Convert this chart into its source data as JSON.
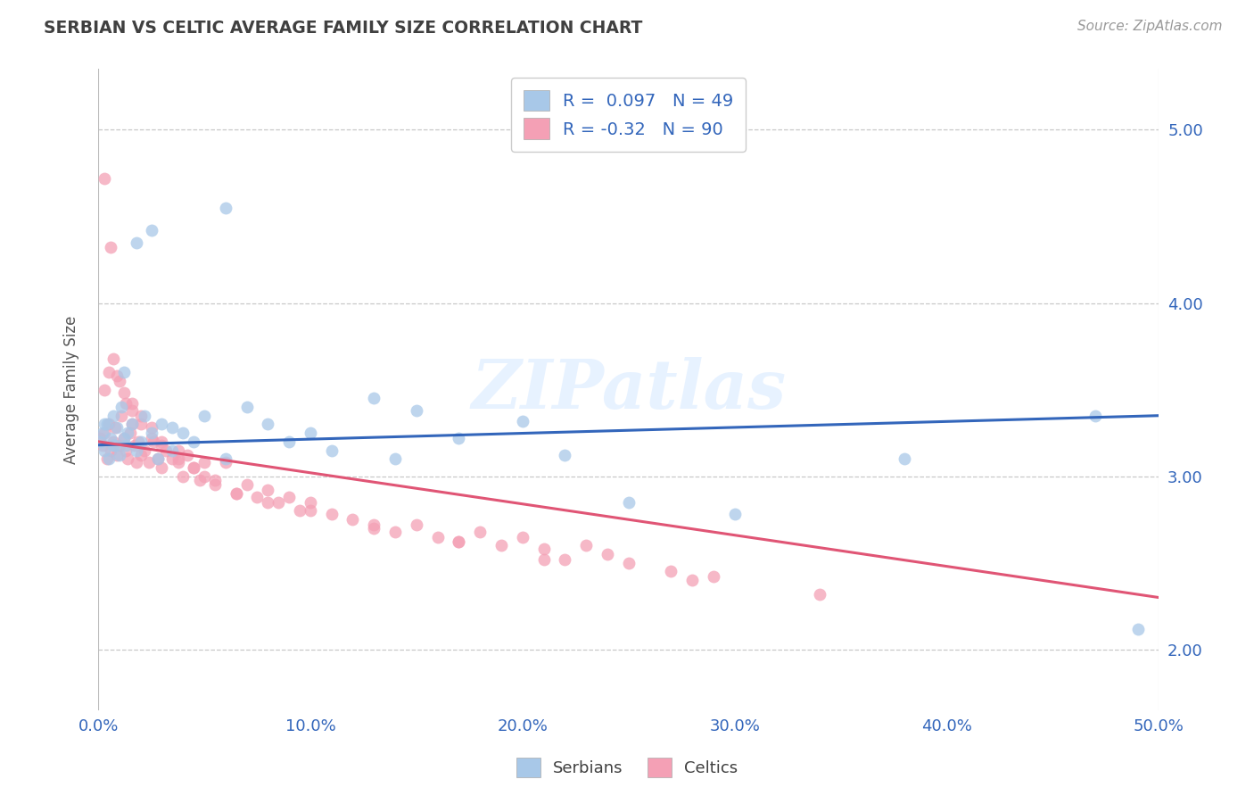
{
  "title": "SERBIAN VS CELTIC AVERAGE FAMILY SIZE CORRELATION CHART",
  "source": "Source: ZipAtlas.com",
  "ylabel": "Average Family Size",
  "xlim": [
    0.0,
    0.5
  ],
  "ylim": [
    1.65,
    5.35
  ],
  "xticks": [
    0.0,
    0.1,
    0.2,
    0.3,
    0.4,
    0.5
  ],
  "xticklabels": [
    "0.0%",
    "10.0%",
    "20.0%",
    "30.0%",
    "40.0%",
    "50.0%"
  ],
  "yticks_right": [
    2.0,
    3.0,
    4.0,
    5.0
  ],
  "ytick_labels_right": [
    "2.00",
    "3.00",
    "4.00",
    "5.00"
  ],
  "serbian_R": 0.097,
  "serbian_N": 49,
  "celtic_R": -0.32,
  "celtic_N": 90,
  "serbian_color": "#A8C8E8",
  "celtic_color": "#F4A0B5",
  "serbian_line_color": "#3366BB",
  "celtic_line_color": "#E05575",
  "watermark": "ZIPatlas",
  "background_color": "#FFFFFF",
  "grid_color": "#C8C8C8",
  "legend_text_color": "#3366BB",
  "title_color": "#404040",
  "serbian_line_x0": 0.0,
  "serbian_line_y0": 3.18,
  "serbian_line_x1": 0.5,
  "serbian_line_y1": 3.35,
  "celtic_line_x0": 0.0,
  "celtic_line_y0": 3.2,
  "celtic_line_x1": 0.5,
  "celtic_line_y1": 2.3,
  "serbian_points_x": [
    0.001,
    0.002,
    0.003,
    0.004,
    0.005,
    0.006,
    0.007,
    0.008,
    0.009,
    0.01,
    0.011,
    0.012,
    0.013,
    0.014,
    0.016,
    0.018,
    0.02,
    0.022,
    0.025,
    0.028,
    0.03,
    0.035,
    0.04,
    0.045,
    0.05,
    0.06,
    0.07,
    0.08,
    0.09,
    0.1,
    0.11,
    0.13,
    0.14,
    0.15,
    0.17,
    0.2,
    0.22,
    0.25,
    0.3,
    0.38,
    0.47,
    0.49,
    0.003,
    0.007,
    0.012,
    0.018,
    0.025,
    0.035,
    0.06
  ],
  "serbian_points_y": [
    3.2,
    3.25,
    3.15,
    3.3,
    3.1,
    3.22,
    3.35,
    3.18,
    3.28,
    3.12,
    3.4,
    3.22,
    3.18,
    3.25,
    3.3,
    3.15,
    3.2,
    3.35,
    3.25,
    3.1,
    3.3,
    3.15,
    3.25,
    3.2,
    3.35,
    3.1,
    3.4,
    3.3,
    3.2,
    3.25,
    3.15,
    3.45,
    3.1,
    3.38,
    3.22,
    3.32,
    3.12,
    2.85,
    2.78,
    3.1,
    3.35,
    2.12,
    3.3,
    3.18,
    3.6,
    4.35,
    4.42,
    3.28,
    4.55
  ],
  "celtic_points_x": [
    0.001,
    0.002,
    0.003,
    0.004,
    0.005,
    0.006,
    0.007,
    0.008,
    0.009,
    0.01,
    0.011,
    0.012,
    0.013,
    0.014,
    0.015,
    0.016,
    0.017,
    0.018,
    0.019,
    0.02,
    0.022,
    0.024,
    0.026,
    0.028,
    0.03,
    0.032,
    0.035,
    0.038,
    0.04,
    0.042,
    0.045,
    0.048,
    0.05,
    0.055,
    0.06,
    0.065,
    0.07,
    0.075,
    0.08,
    0.085,
    0.09,
    0.095,
    0.1,
    0.11,
    0.12,
    0.13,
    0.14,
    0.15,
    0.16,
    0.17,
    0.18,
    0.19,
    0.2,
    0.21,
    0.22,
    0.23,
    0.24,
    0.25,
    0.27,
    0.29,
    0.003,
    0.005,
    0.007,
    0.01,
    0.013,
    0.016,
    0.02,
    0.025,
    0.03,
    0.038,
    0.045,
    0.055,
    0.065,
    0.08,
    0.1,
    0.13,
    0.17,
    0.21,
    0.28,
    0.34,
    0.003,
    0.006,
    0.009,
    0.012,
    0.016,
    0.02,
    0.025,
    0.03,
    0.038,
    0.05
  ],
  "celtic_points_y": [
    3.22,
    3.18,
    3.25,
    3.1,
    3.3,
    3.15,
    3.2,
    3.28,
    3.12,
    3.18,
    3.35,
    3.22,
    3.15,
    3.1,
    3.25,
    3.3,
    3.18,
    3.08,
    3.2,
    3.12,
    3.15,
    3.08,
    3.2,
    3.1,
    3.05,
    3.15,
    3.1,
    3.08,
    3.0,
    3.12,
    3.05,
    2.98,
    3.0,
    2.95,
    3.08,
    2.9,
    2.95,
    2.88,
    2.92,
    2.85,
    2.88,
    2.8,
    2.85,
    2.78,
    2.75,
    2.7,
    2.68,
    2.72,
    2.65,
    2.62,
    2.68,
    2.6,
    2.65,
    2.58,
    2.52,
    2.6,
    2.55,
    2.5,
    2.45,
    2.42,
    3.5,
    3.6,
    3.68,
    3.55,
    3.42,
    3.38,
    3.3,
    3.22,
    3.18,
    3.1,
    3.05,
    2.98,
    2.9,
    2.85,
    2.8,
    2.72,
    2.62,
    2.52,
    2.4,
    2.32,
    4.72,
    4.32,
    3.58,
    3.48,
    3.42,
    3.35,
    3.28,
    3.2,
    3.15,
    3.08
  ]
}
